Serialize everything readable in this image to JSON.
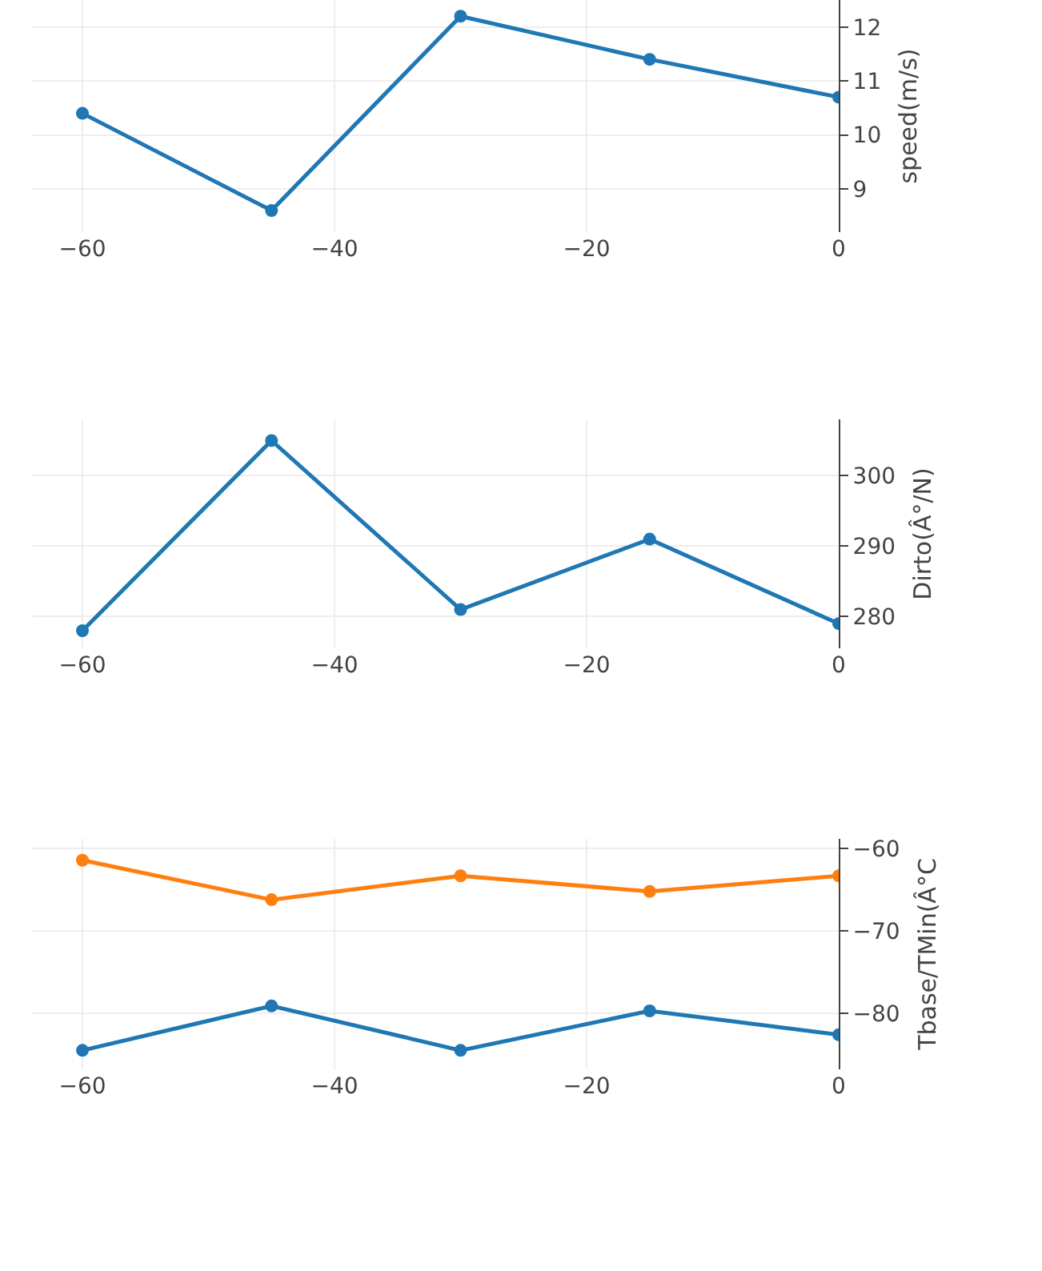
{
  "chart_data": [
    {
      "type": "line",
      "ylabel": "speed(m/s)",
      "x": [
        -60,
        -45,
        -30,
        -15,
        0
      ],
      "xlim": [
        -64,
        0
      ],
      "xticks": [
        -60,
        -40,
        -20,
        0
      ],
      "ylim": [
        8.2,
        12.5
      ],
      "yticks": [
        9,
        10,
        11,
        12
      ],
      "grid": true,
      "marker": "circle",
      "line_style": "solid",
      "series": [
        {
          "color": "#1f77b4",
          "values": [
            10.4,
            8.6,
            12.2,
            11.4,
            10.7
          ]
        }
      ]
    },
    {
      "type": "line",
      "ylabel": "Dirto(Â°/N)",
      "x": [
        -60,
        -45,
        -30,
        -15,
        0
      ],
      "xlim": [
        -64,
        0
      ],
      "xticks": [
        -60,
        -40,
        -20,
        0
      ],
      "ylim": [
        275.5,
        308
      ],
      "yticks": [
        280,
        290,
        300
      ],
      "grid": true,
      "marker": "circle",
      "line_style": "solid",
      "series": [
        {
          "color": "#1f77b4",
          "values": [
            278,
            305,
            281,
            291,
            279
          ]
        }
      ]
    },
    {
      "type": "line",
      "ylabel": "Tbase/TMin(Â°C",
      "x": [
        -60,
        -45,
        -30,
        -15,
        0
      ],
      "xlim": [
        -64,
        0
      ],
      "xticks": [
        -60,
        -40,
        -20,
        0
      ],
      "ylim": [
        -86.8,
        -58.8
      ],
      "yticks": [
        -80,
        -70,
        -60
      ],
      "grid": true,
      "marker": "circle",
      "line_style": "solid",
      "series": [
        {
          "color": "#ff7f0e",
          "values": [
            -61.4,
            -66.2,
            -63.3,
            -65.2,
            -63.3
          ]
        },
        {
          "color": "#1f77b4",
          "values": [
            -84.5,
            -79.1,
            -84.5,
            -79.7,
            -82.6
          ]
        }
      ]
    }
  ]
}
